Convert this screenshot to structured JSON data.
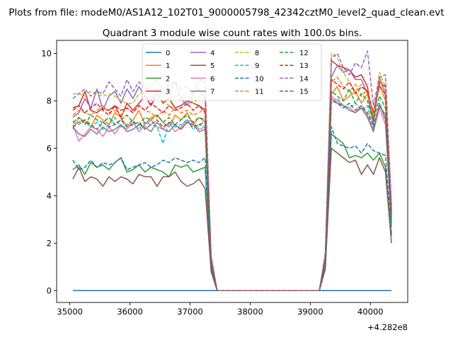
{
  "figure": {
    "suptitle": "Plots from file: modeM0/AS1A12_102T01_9000005798_42342cztM0_level2_quad_clean.evt",
    "title": "Quadrant 3 module wise count rates with 100.0s bins.",
    "x_offset_label": "+4.282e8"
  },
  "chart_data": {
    "type": "line",
    "title": "Quadrant 3 module wise count rates with 100.0s bins.",
    "xlabel": "",
    "ylabel": "",
    "x_offset": 428200000,
    "xlim": [
      34780,
      40620
    ],
    "ylim": [
      -0.5,
      10.55
    ],
    "xticks": [
      35000,
      36000,
      37000,
      38000,
      39000,
      40000
    ],
    "yticks": [
      0,
      2,
      4,
      6,
      8,
      10
    ],
    "grid": false,
    "legend": {
      "placement": "upper center",
      "ncol": 4
    },
    "x": [
      35050,
      35150,
      35250,
      35350,
      35450,
      35550,
      35650,
      35750,
      35850,
      35950,
      36050,
      36150,
      36250,
      36350,
      36450,
      36550,
      36650,
      36750,
      36850,
      36950,
      37050,
      37150,
      37250,
      37350,
      37450,
      37550,
      37650,
      37750,
      37850,
      37950,
      38050,
      38150,
      38250,
      38350,
      38450,
      38550,
      38650,
      38750,
      38850,
      38950,
      39050,
      39150,
      39250,
      39350,
      39450,
      39550,
      39650,
      39750,
      39850,
      39950,
      40050,
      40150,
      40250,
      40350
    ],
    "series": [
      {
        "name": "0",
        "color": "#1f77b4",
        "dash": "solid",
        "values": [
          0,
          0,
          0,
          0,
          0,
          0,
          0,
          0,
          0,
          0,
          0,
          0,
          0,
          0,
          0,
          0,
          0,
          0,
          0,
          0,
          0,
          0,
          0,
          0,
          0,
          0,
          0,
          0,
          0,
          0,
          0,
          0,
          0,
          0,
          0,
          0,
          0,
          0,
          0,
          0,
          0,
          0,
          0,
          0,
          0,
          0,
          0,
          0,
          0,
          0,
          0,
          0,
          0,
          0
        ]
      },
      {
        "name": "1",
        "color": "#ff7f0e",
        "dash": "solid",
        "values": [
          6.8,
          7.3,
          7.1,
          6.9,
          7.4,
          7.2,
          7.0,
          7.5,
          7.3,
          6.9,
          7.2,
          7.6,
          7.0,
          7.3,
          7.4,
          7.1,
          6.9,
          7.4,
          7.2,
          7.5,
          7.0,
          7.3,
          7.1,
          1.2,
          0,
          0,
          0,
          0,
          0,
          0,
          0,
          0,
          0,
          0,
          0,
          0,
          0,
          0,
          0,
          0,
          0,
          0,
          1.2,
          8.3,
          8.6,
          8.0,
          8.2,
          8.4,
          7.9,
          8.3,
          7.5,
          8.7,
          8.0,
          3.1
        ]
      },
      {
        "name": "2",
        "color": "#2ca02c",
        "dash": "solid",
        "values": [
          5.1,
          5.3,
          4.9,
          5.4,
          5.2,
          5.3,
          5.1,
          5.4,
          5.6,
          5.0,
          5.1,
          5.3,
          5.0,
          5.2,
          5.1,
          5.0,
          4.8,
          5.3,
          5.2,
          5.3,
          5.0,
          5.1,
          5.2,
          1.0,
          0,
          0,
          0,
          0,
          0,
          0,
          0,
          0,
          0,
          0,
          0,
          0,
          0,
          0,
          0,
          0,
          0,
          0,
          1.0,
          6.6,
          6.4,
          6.2,
          5.6,
          5.7,
          5.6,
          5.8,
          5.5,
          5.8,
          5.2,
          2.3
        ]
      },
      {
        "name": "3",
        "color": "#d62728",
        "dash": "solid",
        "values": [
          7.7,
          7.8,
          8.4,
          7.6,
          7.5,
          7.7,
          7.6,
          7.8,
          7.3,
          7.9,
          7.6,
          7.9,
          8.2,
          7.8,
          8.3,
          7.9,
          8.1,
          7.7,
          7.8,
          8.0,
          7.9,
          7.8,
          7.6,
          1.3,
          0,
          0,
          0,
          0,
          0,
          0,
          0,
          0,
          0,
          0,
          0,
          0,
          0,
          0,
          0,
          0,
          0,
          0,
          1.4,
          9.7,
          9.5,
          9.4,
          9.3,
          9.0,
          9.1,
          8.6,
          7.2,
          8.8,
          8.6,
          3.5
        ]
      },
      {
        "name": "4",
        "color": "#9467bd",
        "dash": "solid",
        "values": [
          7.3,
          7.5,
          8.1,
          7.7,
          8.5,
          7.6,
          8.2,
          8.4,
          7.9,
          8.5,
          8.1,
          8.6,
          8.2,
          8.0,
          8.5,
          8.3,
          8.4,
          8.8,
          8.1,
          7.8,
          8.3,
          8.5,
          8.1,
          1.4,
          0,
          0,
          0,
          0,
          0,
          0,
          0,
          0,
          0,
          0,
          0,
          0,
          0,
          0,
          0,
          0,
          0,
          0,
          1.5,
          9.0,
          9.5,
          9.2,
          9.3,
          8.9,
          8.9,
          8.3,
          7.0,
          9.0,
          8.2,
          3.3
        ]
      },
      {
        "name": "5",
        "color": "#8c564b",
        "dash": "solid",
        "values": [
          4.7,
          5.2,
          4.6,
          4.8,
          4.7,
          4.4,
          4.8,
          4.6,
          4.8,
          4.7,
          4.5,
          4.9,
          4.8,
          4.8,
          4.4,
          4.8,
          4.8,
          5.0,
          4.6,
          4.4,
          4.5,
          4.7,
          4.3,
          0.8,
          0,
          0,
          0,
          0,
          0,
          0,
          0,
          0,
          0,
          0,
          0,
          0,
          0,
          0,
          0,
          0,
          0,
          0,
          0.9,
          6.0,
          5.8,
          5.6,
          5.4,
          5.5,
          4.9,
          5.3,
          4.9,
          5.6,
          5.0,
          2.0
        ]
      },
      {
        "name": "6",
        "color": "#e377c2",
        "dash": "solid",
        "values": [
          7.0,
          6.3,
          6.6,
          6.9,
          6.8,
          6.5,
          6.9,
          6.6,
          7.0,
          6.8,
          7.1,
          6.7,
          7.0,
          7.2,
          6.9,
          6.8,
          7.1,
          6.7,
          6.9,
          7.2,
          7.1,
          6.8,
          6.9,
          1.1,
          0,
          0,
          0,
          0,
          0,
          0,
          0,
          0,
          0,
          0,
          0,
          0,
          0,
          0,
          0,
          0,
          0,
          0,
          1.2,
          8.2,
          8.0,
          7.8,
          7.7,
          7.5,
          7.8,
          7.4,
          6.7,
          7.7,
          7.0,
          2.7
        ]
      },
      {
        "name": "7",
        "color": "#7f7f7f",
        "dash": "solid",
        "values": [
          6.9,
          6.6,
          6.5,
          6.8,
          6.6,
          6.9,
          6.7,
          6.8,
          7.0,
          6.7,
          6.8,
          7.0,
          6.9,
          6.7,
          7.1,
          6.8,
          6.7,
          7.0,
          6.8,
          7.1,
          7.0,
          6.7,
          6.8,
          1.1,
          0,
          0,
          0,
          0,
          0,
          0,
          0,
          0,
          0,
          0,
          0,
          0,
          0,
          0,
          0,
          0,
          0,
          0,
          1.2,
          8.1,
          7.9,
          7.8,
          7.6,
          7.5,
          7.7,
          7.3,
          6.7,
          7.9,
          7.2,
          2.8
        ]
      },
      {
        "name": "8",
        "color": "#bcbd22",
        "dash": "dashed",
        "values": [
          8.3,
          8.3,
          8.2,
          8.4,
          8.3,
          8.2,
          8.3,
          8.2,
          8.0,
          7.9,
          7.9,
          8.3,
          8.4,
          8.1,
          8.2,
          8.0,
          7.8,
          8.2,
          8.0,
          8.3,
          7.9,
          8.1,
          8.6,
          1.4,
          0,
          0,
          0,
          0,
          0,
          0,
          0,
          0,
          0,
          0,
          0,
          0,
          0,
          0,
          0,
          0,
          0,
          0,
          1.5,
          10.0,
          9.8,
          9.2,
          8.8,
          8.4,
          8.7,
          8.3,
          7.4,
          9.2,
          8.6,
          3.4
        ]
      },
      {
        "name": "9",
        "color": "#17becf",
        "dash": "dashed",
        "values": [
          7.1,
          7.0,
          7.2,
          6.9,
          7.1,
          6.8,
          7.0,
          7.3,
          6.9,
          7.0,
          7.2,
          6.8,
          7.1,
          7.0,
          6.9,
          6.2,
          7.1,
          6.9,
          7.0,
          7.2,
          6.8,
          7.0,
          6.9,
          1.1,
          0,
          0,
          0,
          0,
          0,
          0,
          0,
          0,
          0,
          0,
          0,
          0,
          0,
          0,
          0,
          0,
          0,
          0,
          1.2,
          7.9,
          8.1,
          7.8,
          7.7,
          7.9,
          7.6,
          7.8,
          6.8,
          7.9,
          7.3,
          2.8
        ]
      },
      {
        "name": "10",
        "color": "#1f77b4",
        "dash": "dashed",
        "values": [
          5.5,
          5.1,
          5.2,
          5.5,
          5.2,
          5.4,
          5.3,
          5.4,
          5.6,
          5.1,
          5.2,
          5.3,
          5.4,
          5.2,
          5.3,
          5.5,
          5.4,
          5.6,
          5.5,
          5.4,
          5.5,
          5.4,
          5.6,
          0.9,
          0,
          0,
          0,
          0,
          0,
          0,
          0,
          0,
          0,
          0,
          0,
          0,
          0,
          0,
          0,
          0,
          0,
          0,
          1.0,
          6.9,
          6.2,
          6.1,
          6.0,
          6.1,
          5.8,
          6.2,
          5.9,
          5.8,
          5.7,
          2.4
        ]
      },
      {
        "name": "11",
        "color": "#ff7f0e",
        "dash": "dashed",
        "values": [
          7.4,
          7.6,
          7.5,
          7.4,
          7.6,
          7.8,
          7.5,
          7.6,
          7.4,
          7.7,
          7.5,
          7.8,
          7.6,
          7.5,
          7.3,
          7.6,
          7.4,
          7.7,
          7.5,
          7.6,
          7.4,
          7.5,
          7.7,
          1.2,
          0,
          0,
          0,
          0,
          0,
          0,
          0,
          0,
          0,
          0,
          0,
          0,
          0,
          0,
          0,
          0,
          0,
          0,
          1.3,
          8.8,
          9.0,
          8.6,
          8.4,
          8.7,
          8.2,
          8.5,
          7.3,
          9.0,
          8.4,
          3.2
        ]
      },
      {
        "name": "12",
        "color": "#2ca02c",
        "dash": "dashed",
        "values": [
          7.1,
          7.3,
          7.0,
          7.4,
          7.2,
          7.1,
          7.3,
          7.0,
          7.2,
          7.4,
          7.1,
          7.0,
          7.3,
          7.2,
          7.4,
          7.1,
          7.3,
          7.0,
          7.2,
          7.4,
          7.1,
          7.3,
          7.2,
          1.2,
          0,
          0,
          0,
          0,
          0,
          0,
          0,
          0,
          0,
          0,
          0,
          0,
          0,
          0,
          0,
          0,
          0,
          0,
          1.3,
          8.4,
          8.2,
          8.0,
          8.5,
          7.9,
          8.3,
          8.0,
          7.1,
          8.2,
          7.7,
          3.0
        ]
      },
      {
        "name": "13",
        "color": "#d62728",
        "dash": "dashed",
        "values": [
          7.6,
          7.8,
          7.5,
          7.7,
          7.9,
          7.6,
          7.4,
          7.8,
          7.6,
          7.7,
          7.5,
          7.8,
          7.6,
          7.9,
          7.7,
          7.5,
          7.8,
          7.6,
          7.7,
          7.9,
          7.6,
          7.8,
          7.5,
          1.3,
          0,
          0,
          0,
          0,
          0,
          0,
          0,
          0,
          0,
          0,
          0,
          0,
          0,
          0,
          0,
          0,
          0,
          0,
          1.4,
          8.9,
          8.7,
          8.5,
          8.8,
          8.3,
          8.6,
          8.4,
          7.5,
          8.6,
          8.3,
          3.3
        ]
      },
      {
        "name": "14",
        "color": "#9467bd",
        "dash": "dashed",
        "values": [
          8.1,
          8.3,
          8.5,
          8.2,
          8.4,
          8.3,
          8.8,
          8.5,
          8.2,
          8.9,
          8.4,
          8.8,
          8.5,
          8.6,
          8.9,
          8.4,
          8.7,
          8.8,
          8.5,
          8.6,
          8.3,
          8.9,
          8.8,
          1.5,
          0,
          0,
          0,
          0,
          0,
          0,
          0,
          0,
          0,
          0,
          0,
          0,
          0,
          0,
          0,
          0,
          0,
          0,
          1.6,
          9.8,
          10.0,
          9.4,
          9.1,
          9.6,
          9.4,
          10.1,
          7.8,
          9.0,
          9.1,
          3.6
        ]
      },
      {
        "name": "15",
        "color": "#8c564b",
        "dash": "dashed",
        "values": [
          6.9,
          7.1,
          7.2,
          7.0,
          6.8,
          7.1,
          6.9,
          7.0,
          7.2,
          6.9,
          7.0,
          7.1,
          6.8,
          7.0,
          7.2,
          6.9,
          7.1,
          7.0,
          6.8,
          7.1,
          6.9,
          7.0,
          7.1,
          1.1,
          0,
          0,
          0,
          0,
          0,
          0,
          0,
          0,
          0,
          0,
          0,
          0,
          0,
          0,
          0,
          0,
          0,
          0,
          1.2,
          8.0,
          7.9,
          7.7,
          7.9,
          7.6,
          7.8,
          7.5,
          6.9,
          7.8,
          7.4,
          2.9
        ]
      }
    ]
  }
}
